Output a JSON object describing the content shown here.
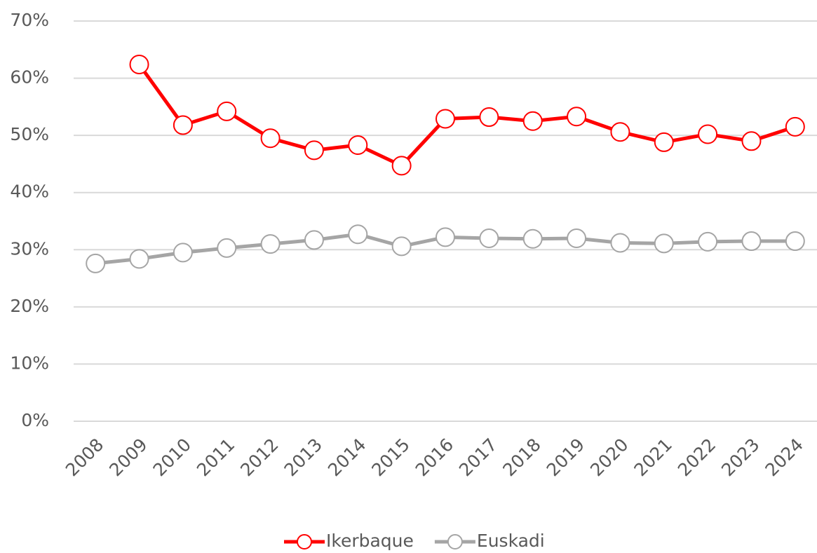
{
  "chart_data": {
    "type": "line",
    "categories": [
      "2008",
      "2009",
      "2010",
      "2011",
      "2012",
      "2013",
      "2014",
      "2015",
      "2016",
      "2017",
      "2018",
      "2019",
      "2020",
      "2021",
      "2022",
      "2023",
      "2024"
    ],
    "series": [
      {
        "name": "Ikerbaque",
        "color": "#ff0000",
        "values": [
          null,
          62.4,
          51.8,
          54.2,
          49.5,
          47.4,
          48.3,
          44.7,
          52.9,
          53.2,
          52.5,
          53.3,
          50.6,
          48.8,
          50.2,
          49.0,
          51.5
        ]
      },
      {
        "name": "Euskadi",
        "color": "#a5a5a5",
        "values": [
          27.6,
          28.4,
          29.5,
          30.3,
          31.0,
          31.7,
          32.7,
          30.6,
          32.2,
          32.0,
          31.9,
          32.0,
          31.2,
          31.1,
          31.4,
          31.5,
          31.5
        ]
      }
    ],
    "ylim": [
      0,
      70
    ],
    "yticks": [
      {
        "value": 0,
        "label": "0%"
      },
      {
        "value": 10,
        "label": "10%"
      },
      {
        "value": 20,
        "label": "20%"
      },
      {
        "value": 30,
        "label": "30%"
      },
      {
        "value": 40,
        "label": "40%"
      },
      {
        "value": 50,
        "label": "50%"
      },
      {
        "value": 60,
        "label": "60%"
      },
      {
        "value": 70,
        "label": "70%"
      }
    ],
    "grid": true,
    "legend": "bottom"
  }
}
